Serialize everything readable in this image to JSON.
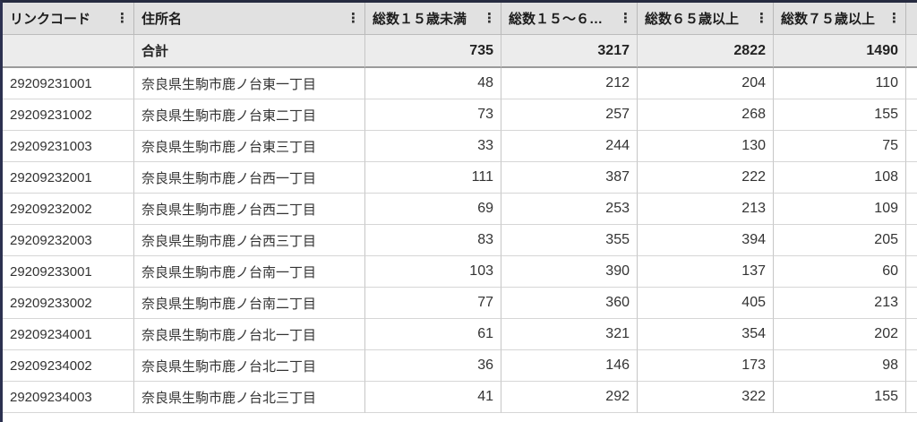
{
  "table": {
    "menu_icon": "⋮",
    "columns": [
      {
        "label": "リンクコード",
        "type": "text"
      },
      {
        "label": "住所名",
        "type": "text"
      },
      {
        "label": "総数１５歳未満",
        "type": "number"
      },
      {
        "label": "総数１５〜６…",
        "type": "number"
      },
      {
        "label": "総数６５歳以上",
        "type": "number"
      },
      {
        "label": "総数７５歳以上",
        "type": "number"
      }
    ],
    "totals_row": {
      "label": "合計",
      "values": [
        "735",
        "3217",
        "2822",
        "1490"
      ]
    },
    "rows": [
      {
        "code": "29209231001",
        "address": "奈良県生駒市鹿ノ台東一丁目",
        "values": [
          "48",
          "212",
          "204",
          "110"
        ]
      },
      {
        "code": "29209231002",
        "address": "奈良県生駒市鹿ノ台東二丁目",
        "values": [
          "73",
          "257",
          "268",
          "155"
        ]
      },
      {
        "code": "29209231003",
        "address": "奈良県生駒市鹿ノ台東三丁目",
        "values": [
          "33",
          "244",
          "130",
          "75"
        ]
      },
      {
        "code": "29209232001",
        "address": "奈良県生駒市鹿ノ台西一丁目",
        "values": [
          "111",
          "387",
          "222",
          "108"
        ]
      },
      {
        "code": "29209232002",
        "address": "奈良県生駒市鹿ノ台西二丁目",
        "values": [
          "69",
          "253",
          "213",
          "109"
        ]
      },
      {
        "code": "29209232003",
        "address": "奈良県生駒市鹿ノ台西三丁目",
        "values": [
          "83",
          "355",
          "394",
          "205"
        ]
      },
      {
        "code": "29209233001",
        "address": "奈良県生駒市鹿ノ台南一丁目",
        "values": [
          "103",
          "390",
          "137",
          "60"
        ]
      },
      {
        "code": "29209233002",
        "address": "奈良県生駒市鹿ノ台南二丁目",
        "values": [
          "77",
          "360",
          "405",
          "213"
        ]
      },
      {
        "code": "29209234001",
        "address": "奈良県生駒市鹿ノ台北一丁目",
        "values": [
          "61",
          "321",
          "354",
          "202"
        ]
      },
      {
        "code": "29209234002",
        "address": "奈良県生駒市鹿ノ台北二丁目",
        "values": [
          "36",
          "146",
          "173",
          "98"
        ]
      },
      {
        "code": "29209234003",
        "address": "奈良県生駒市鹿ノ台北三丁目",
        "values": [
          "41",
          "292",
          "322",
          "155"
        ]
      }
    ]
  },
  "colors": {
    "frame_dark": "#2c3150",
    "header_bg": "#e1e1e1",
    "totals_bg": "#ececec",
    "cell_border": "#c6c6c6",
    "totals_separator": "#9b9b9b",
    "text": "#333333"
  }
}
